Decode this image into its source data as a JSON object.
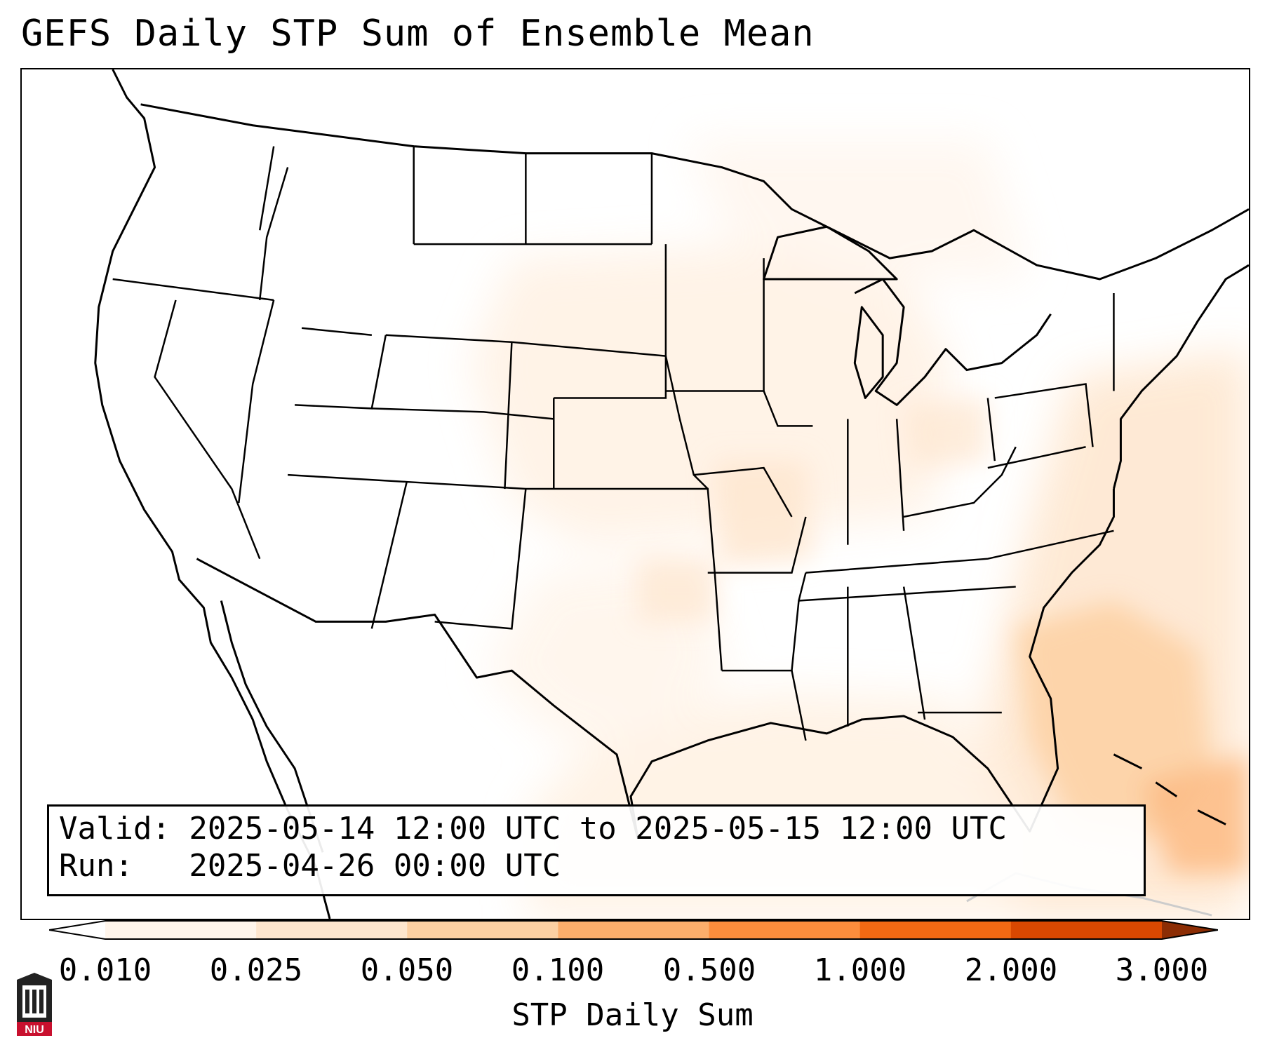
{
  "title": "GEFS Daily STP Sum of Ensemble Mean",
  "info": {
    "valid_line": "Valid: 2025-05-14 12:00 UTC to 2025-05-15 12:00 UTC",
    "run_line": "Run:   2025-04-26 00:00 UTC"
  },
  "colorbar": {
    "label": "STP Daily Sum",
    "ticks": [
      "0.010",
      "0.025",
      "0.050",
      "0.100",
      "0.500",
      "1.000",
      "2.000",
      "3.000"
    ],
    "colors": [
      "#fff5eb",
      "#fee6ce",
      "#fdd0a2",
      "#fdae6b",
      "#fd8d3c",
      "#f16913",
      "#d94801",
      "#8c2d04"
    ],
    "extend": "both"
  },
  "logo": {
    "text": "NIU",
    "color": "#c8102e"
  },
  "map": {
    "projection": "Lambert Conformal (CONUS)",
    "shading_color": "#fdd0a2",
    "region_intensity": {
      "atlantic_southeast": "0.025–0.100",
      "florida_east_coast": "0.050–0.100",
      "gulf_of_mexico": "0.010–0.050",
      "central_plains_midwest": "0.010–0.025",
      "ohio_valley": "0.010–0.025",
      "bahamas_region": "0.050–0.100"
    }
  }
}
